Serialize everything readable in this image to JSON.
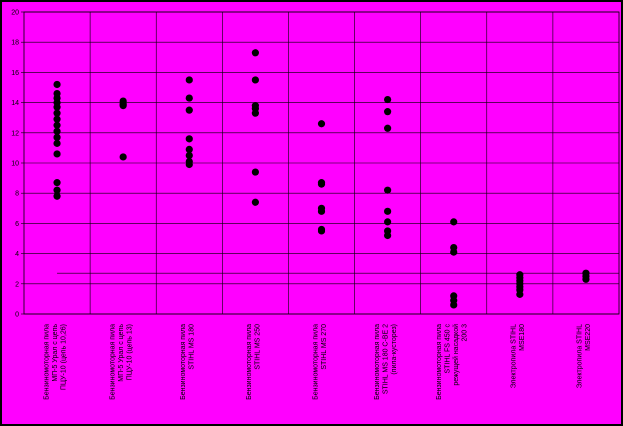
{
  "chart_data": {
    "type": "scatter",
    "title": "",
    "xlabel": "",
    "ylabel": "",
    "ylim": [
      0,
      20
    ],
    "y_ticks": [
      0,
      2,
      4,
      6,
      8,
      10,
      12,
      14,
      16,
      18,
      20
    ],
    "grid": true,
    "legend": "none",
    "reference_line": 2.7,
    "categories": [
      [
        "Бензиномоторная пила",
        "МП-5 Урал с цепь",
        "ПЦУ-10 (цепь 10,26)"
      ],
      [
        "Бензиномоторная пила",
        "МП-5 Урал с цепь",
        "ПЦУ-10 (цепь 13)"
      ],
      [
        "Бензиномоторная пила",
        "STIHL MS 180"
      ],
      [
        "Бензиномоторная пила",
        "STIHL MS 250"
      ],
      [
        "Бензиномоторная пила",
        "STIHL MS 270"
      ],
      [
        "Бензиномоторная пила",
        "STIHL MS 180 C-BE 2",
        "(пила-кусторез)"
      ],
      [
        "Бензиномоторная пила",
        "STIHL FS 450 с",
        "режущей насадкой",
        "200 3"
      ],
      [
        "Электропила STIHL",
        "MSE180"
      ],
      [
        "Электропила STIHL",
        "MSE220"
      ]
    ],
    "series": [
      {
        "values": [
          [
            15.2,
            14.6,
            14.3,
            14.0,
            13.7,
            13.3,
            12.9,
            12.5,
            12.1,
            11.7,
            11.3,
            10.6,
            8.7,
            8.2,
            7.8
          ],
          [
            14.1,
            13.9,
            13.8,
            10.4
          ],
          [
            15.5,
            14.3,
            13.5,
            11.6,
            10.9,
            10.5,
            10.1,
            9.9
          ],
          [
            17.3,
            15.5,
            13.8,
            13.6,
            13.3,
            9.4,
            7.4
          ],
          [
            12.6,
            8.7,
            8.6,
            7.0,
            6.8,
            5.6,
            5.5
          ],
          [
            14.2,
            13.4,
            12.3,
            8.2,
            6.8,
            6.1,
            5.5,
            5.2
          ],
          [
            6.1,
            4.4,
            4.1,
            1.2,
            0.9,
            0.6
          ],
          [
            2.6,
            2.4,
            2.2,
            2.0,
            1.8,
            1.6,
            1.3
          ],
          [
            2.7,
            2.5,
            2.3
          ]
        ]
      }
    ]
  },
  "colors": {
    "background": "#FF00FF",
    "outer": "#000000",
    "marker": "#000000",
    "grid": "#000000"
  }
}
